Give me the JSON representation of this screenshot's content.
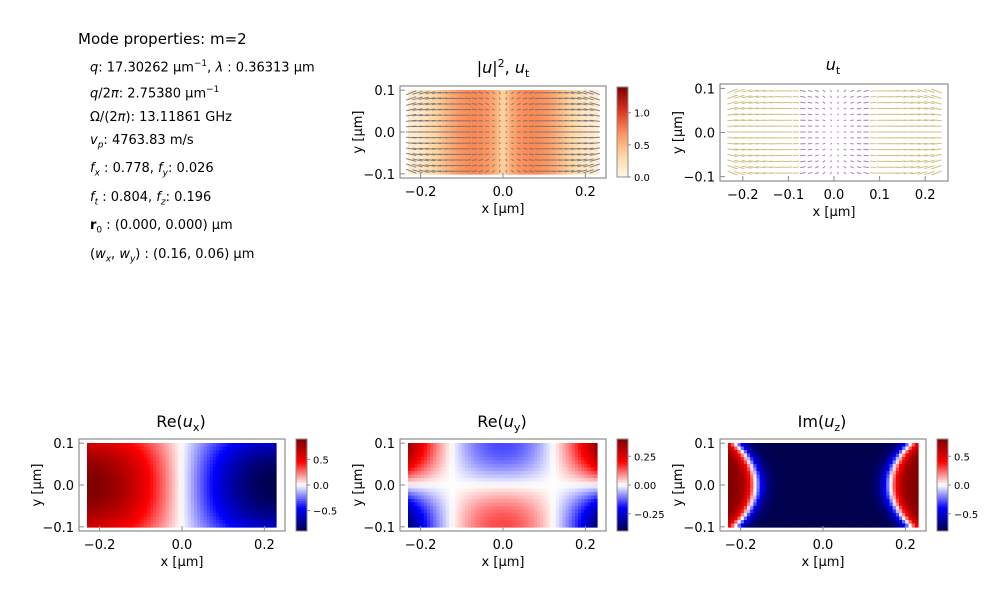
{
  "properties": {
    "title": "Mode properties: m=2",
    "q": "17.30262",
    "q_unit": "μm",
    "lambda": "0.36313 μm",
    "q_over_2pi": "2.75380",
    "q_over_2pi_unit": "μm",
    "omega": "13.11861 GHz",
    "vp": "4763.83 m/s",
    "fx": "0.778",
    "fy": "0.026",
    "ft": "0.804",
    "fz": "0.196",
    "r0": "(0.000, 0.000) μm",
    "wx_wy": "(0.16, 0.06) μm",
    "exp_minus_one": "−1"
  },
  "chart_data": [
    {
      "type": "heatmap",
      "title": "|u|², u_t",
      "title_parts": [
        "|",
        "u",
        "|",
        "2",
        ", ",
        "u",
        "t"
      ],
      "field": "intensity",
      "quiver": true,
      "arrow_color": "#6e6e6e",
      "xlabel": "x [μm]",
      "ylabel": "y [μm]",
      "xlim": [
        -0.25,
        0.25
      ],
      "ylim": [
        -0.11,
        0.11
      ],
      "extent_x": [
        -0.225,
        0.225
      ],
      "extent_y": [
        -0.1,
        0.1
      ],
      "xticks": [
        -0.2,
        0.0,
        0.2
      ],
      "xticklabels": [
        "−0.2",
        "0.0",
        "0.2"
      ],
      "yticks": [
        -0.1,
        0.0,
        0.1
      ],
      "yticklabels": [
        "−0.1",
        "0.0",
        "0.1"
      ],
      "colorbar": {
        "cmap": "OrRd",
        "min": 0,
        "max": 1.4,
        "ticks": [
          0,
          0.5,
          1.0
        ],
        "ticklabels": [
          "0.0",
          "0.5",
          "1.0"
        ]
      }
    },
    {
      "type": "quiver",
      "title": "u_t",
      "title_parts": [
        "u",
        "t"
      ],
      "field": "none",
      "quiver": true,
      "arrow_colors": [
        "#c9b56a",
        "#9b6aa3"
      ],
      "xlabel": "x [μm]",
      "ylabel": "y [μm]",
      "xlim": [
        -0.25,
        0.25
      ],
      "ylim": [
        -0.11,
        0.11
      ],
      "extent_x": [
        -0.225,
        0.225
      ],
      "extent_y": [
        -0.1,
        0.1
      ],
      "xticks": [
        -0.2,
        -0.1,
        0.0,
        0.1,
        0.2
      ],
      "xticklabels": [
        "−0.2",
        "−0.1",
        "0.0",
        "0.1",
        "0.2"
      ],
      "yticks": [
        -0.1,
        0.0,
        0.1
      ],
      "yticklabels": [
        "−0.1",
        "0.0",
        "0.1"
      ]
    },
    {
      "type": "heatmap",
      "title": "Re(u_x)",
      "title_parts": [
        "Re(",
        "u",
        "x",
        ")"
      ],
      "field": "re_ux",
      "xlabel": "x [μm]",
      "ylabel": "y [μm]",
      "xlim": [
        -0.25,
        0.25
      ],
      "ylim": [
        -0.11,
        0.11
      ],
      "extent_x": [
        -0.225,
        0.225
      ],
      "extent_y": [
        -0.1,
        0.1
      ],
      "xticks": [
        -0.2,
        0.0,
        0.2
      ],
      "xticklabels": [
        "−0.2",
        "0.0",
        "0.2"
      ],
      "yticks": [
        -0.1,
        0.0,
        0.1
      ],
      "yticklabels": [
        "−0.1",
        "0.0",
        "0.1"
      ],
      "colorbar": {
        "cmap": "seismic",
        "min": -0.9,
        "max": 0.9,
        "ticks": [
          -0.5,
          0,
          0.5
        ],
        "ticklabels": [
          "−0.5",
          "0.0",
          "0.5"
        ]
      }
    },
    {
      "type": "heatmap",
      "title": "Re(u_y)",
      "title_parts": [
        "Re(",
        "u",
        "y",
        ")"
      ],
      "field": "re_uy",
      "xlabel": "x [μm]",
      "ylabel": "y [μm]",
      "xlim": [
        -0.25,
        0.25
      ],
      "ylim": [
        -0.11,
        0.11
      ],
      "extent_x": [
        -0.225,
        0.225
      ],
      "extent_y": [
        -0.1,
        0.1
      ],
      "xticks": [
        -0.2,
        0.0,
        0.2
      ],
      "xticklabels": [
        "−0.2",
        "0.0",
        "0.2"
      ],
      "yticks": [
        -0.1,
        0.0,
        0.1
      ],
      "yticklabels": [
        "−0.1",
        "0.0",
        "0.1"
      ],
      "colorbar": {
        "cmap": "seismic",
        "min": -0.4,
        "max": 0.4,
        "ticks": [
          -0.25,
          0,
          0.25
        ],
        "ticklabels": [
          "−0.25",
          "0.00",
          "0.25"
        ]
      }
    },
    {
      "type": "heatmap",
      "title": "Im(u_z)",
      "title_parts": [
        "Im(",
        "u",
        "z",
        ")"
      ],
      "field": "im_uz",
      "xlabel": "x [μm]",
      "ylabel": "y [μm]",
      "xlim": [
        -0.25,
        0.25
      ],
      "ylim": [
        -0.11,
        0.11
      ],
      "extent_x": [
        -0.225,
        0.225
      ],
      "extent_y": [
        -0.1,
        0.1
      ],
      "xticks": [
        -0.2,
        0.0,
        0.2
      ],
      "xticklabels": [
        "−0.2",
        "0.0",
        "0.2"
      ],
      "yticks": [
        -0.1,
        0.0,
        0.1
      ],
      "yticklabels": [
        "−0.1",
        "0.0",
        "0.1"
      ],
      "colorbar": {
        "cmap": "seismic",
        "min": -0.8,
        "max": 0.8,
        "ticks": [
          -0.5,
          0,
          0.5
        ],
        "ticklabels": [
          "−0.5",
          "0.0",
          "0.5"
        ]
      }
    }
  ]
}
